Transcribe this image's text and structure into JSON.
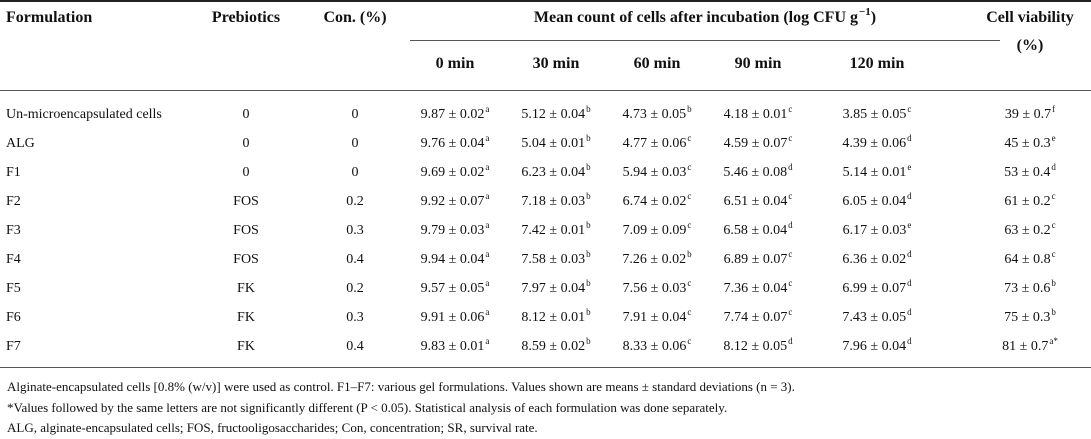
{
  "table": {
    "headers": {
      "formulation": "Formulation",
      "prebiotics": "Prebiotics",
      "con": "Con. (%)",
      "mean_count": "Mean count of cells after incubation (log CFU g",
      "mean_count_exp": "−1",
      "mean_count_end": ")",
      "viability_line1": "Cell viability",
      "viability_line2": "(%)",
      "times": [
        "0 min",
        "30 min",
        "60 min",
        "90 min",
        "120 min"
      ]
    },
    "rows": [
      {
        "formulation": "Un-microencapsulated cells",
        "prebiotics": "0",
        "con": "0",
        "values": [
          [
            "9.87 ± 0.02",
            "a"
          ],
          [
            "5.12 ± 0.04",
            "b"
          ],
          [
            "4.73 ± 0.05",
            "b"
          ],
          [
            "4.18 ± 0.01",
            "c"
          ],
          [
            "3.85 ± 0.05",
            "c"
          ]
        ],
        "viability": [
          "39 ± 0.7",
          "f"
        ]
      },
      {
        "formulation": "ALG",
        "prebiotics": "0",
        "con": "0",
        "values": [
          [
            "9.76 ± 0.04",
            "a"
          ],
          [
            "5.04 ± 0.01",
            "b"
          ],
          [
            "4.77 ± 0.06",
            "c"
          ],
          [
            "4.59 ± 0.07",
            "c"
          ],
          [
            "4.39 ± 0.06",
            "d"
          ]
        ],
        "viability": [
          "45 ± 0.3",
          "e"
        ]
      },
      {
        "formulation": "F1",
        "prebiotics": "0",
        "con": "0",
        "values": [
          [
            "9.69 ± 0.02",
            "a"
          ],
          [
            "6.23 ± 0.04",
            "b"
          ],
          [
            "5.94 ± 0.03",
            "c"
          ],
          [
            "5.46 ± 0.08",
            "d"
          ],
          [
            "5.14 ± 0.01",
            "e"
          ]
        ],
        "viability": [
          "53 ± 0.4",
          "d"
        ]
      },
      {
        "formulation": "F2",
        "prebiotics": "FOS",
        "con": "0.2",
        "values": [
          [
            "9.92 ± 0.07",
            "a"
          ],
          [
            "7.18 ± 0.03",
            "b"
          ],
          [
            "6.74 ± 0.02",
            "c"
          ],
          [
            "6.51 ± 0.04",
            "c"
          ],
          [
            "6.05 ± 0.04",
            "d"
          ]
        ],
        "viability": [
          "61 ± 0.2",
          "c"
        ]
      },
      {
        "formulation": "F3",
        "prebiotics": "FOS",
        "con": "0.3",
        "values": [
          [
            "9.79 ± 0.03",
            "a"
          ],
          [
            "7.42 ± 0.01",
            "b"
          ],
          [
            "7.09 ± 0.09",
            "c"
          ],
          [
            "6.58 ± 0.04",
            "d"
          ],
          [
            "6.17 ± 0.03",
            "e"
          ]
        ],
        "viability": [
          "63 ± 0.2",
          "c"
        ]
      },
      {
        "formulation": "F4",
        "prebiotics": "FOS",
        "con": "0.4",
        "values": [
          [
            "9.94 ± 0.04",
            "a"
          ],
          [
            "7.58 ± 0.03",
            "b"
          ],
          [
            "7.26 ± 0.02",
            "b"
          ],
          [
            "6.89 ± 0.07",
            "c"
          ],
          [
            "6.36 ± 0.02",
            "d"
          ]
        ],
        "viability": [
          "64 ± 0.8",
          "c"
        ]
      },
      {
        "formulation": "F5",
        "prebiotics": "FK",
        "con": "0.2",
        "values": [
          [
            "9.57 ± 0.05",
            "a"
          ],
          [
            "7.97 ± 0.04",
            "b"
          ],
          [
            "7.56 ± 0.03",
            "c"
          ],
          [
            "7.36 ± 0.04",
            "c"
          ],
          [
            "6.99 ± 0.07",
            "d"
          ]
        ],
        "viability": [
          "73 ± 0.6",
          "b"
        ]
      },
      {
        "formulation": "F6",
        "prebiotics": "FK",
        "con": "0.3",
        "values": [
          [
            "9.91 ± 0.06",
            "a"
          ],
          [
            "8.12 ± 0.01",
            "b"
          ],
          [
            "7.91 ± 0.04",
            "c"
          ],
          [
            "7.74 ± 0.07",
            "c"
          ],
          [
            "7.43 ± 0.05",
            "d"
          ]
        ],
        "viability": [
          "75 ± 0.3",
          "b"
        ]
      },
      {
        "formulation": "F7",
        "prebiotics": "FK",
        "con": "0.4",
        "values": [
          [
            "9.83 ± 0.01",
            "a"
          ],
          [
            "8.59 ± 0.02",
            "b"
          ],
          [
            "8.33 ± 0.06",
            "c"
          ],
          [
            "8.12 ± 0.05",
            "d"
          ],
          [
            "7.96 ± 0.04",
            "d"
          ]
        ],
        "viability": [
          "81 ± 0.7",
          "a*"
        ]
      }
    ]
  },
  "footnotes": [
    "Alginate-encapsulated cells [0.8% (w/v)] were used as control. F1–F7: various gel formulations. Values shown are means ± standard deviations (n = 3).",
    "*Values followed by the same letters are not significantly different (P < 0.05). Statistical analysis of each formulation was done separately.",
    "ALG, alginate-encapsulated cells; FOS, fructooligosaccharides; Con, concentration; SR, survival rate."
  ]
}
